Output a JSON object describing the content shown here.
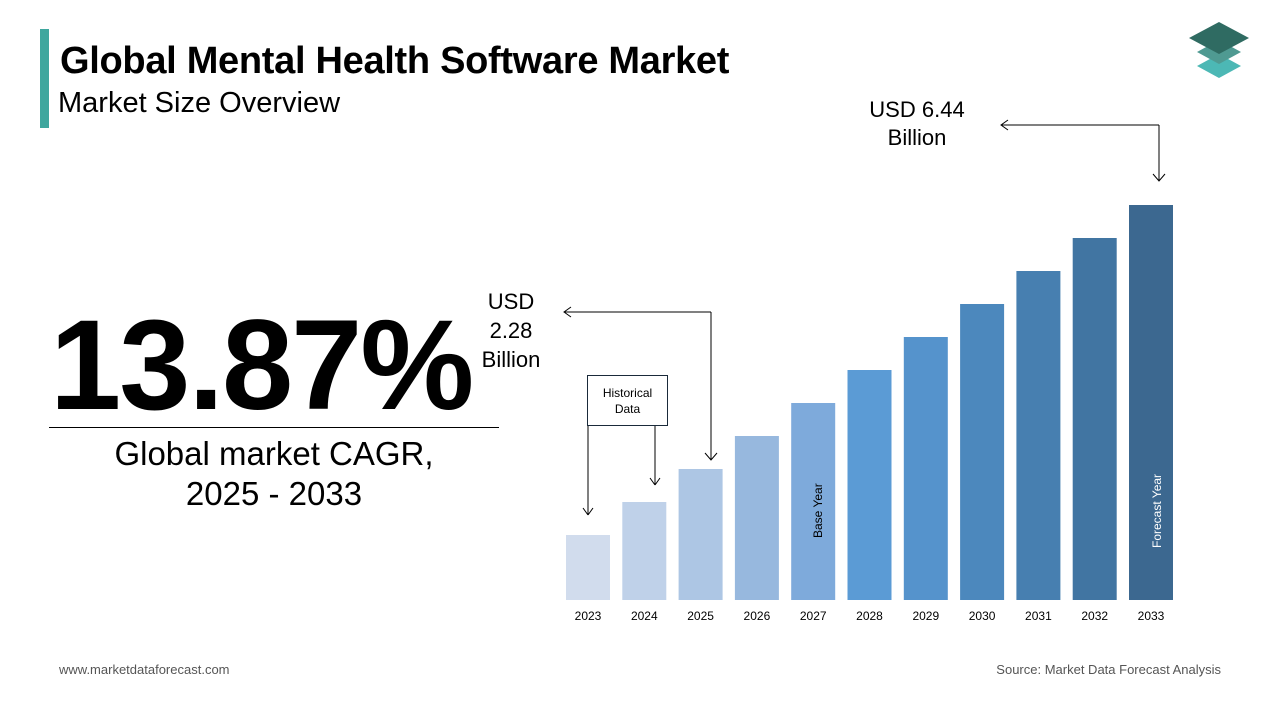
{
  "header": {
    "title": "Global Mental Health Software Market",
    "subtitle": "Market Size Overview"
  },
  "cagr": {
    "value": "13.87%",
    "label_line1": "Global market CAGR,",
    "label_line2": "2025 - 2033"
  },
  "footer": {
    "website": "www.marketdataforecast.com",
    "source": "Source: Market Data Forecast Analysis"
  },
  "logo": {
    "icon": "stacked-layers-icon",
    "colors": [
      "#2f6b62",
      "#4f9a92",
      "#4cb8b5"
    ]
  },
  "chart_data": {
    "type": "bar",
    "categories": [
      "2023",
      "2024",
      "2025",
      "2026",
      "2027",
      "2028",
      "2029",
      "2030",
      "2031",
      "2032",
      "2033"
    ],
    "values": [
      1.24,
      1.76,
      2.28,
      2.8,
      3.32,
      3.84,
      4.36,
      4.88,
      5.4,
      5.92,
      6.44
    ],
    "unit": "USD Billion",
    "colors": [
      "#d1dced",
      "#bfd1e9",
      "#adc6e4",
      "#97b8de",
      "#7eaadb",
      "#5b9bd5",
      "#5593cc",
      "#4c88bd",
      "#477fb0",
      "#4175a2",
      "#3c6890"
    ],
    "annotations": {
      "top_line1": "USD 6.44",
      "top_line2": "Billion",
      "mid_line1": "USD",
      "mid_line2": "2.28",
      "mid_line3": "Billion",
      "historical_line1": "Historical",
      "historical_line2": "Data",
      "base_year": "Base Year",
      "forecast_year": "Forecast Year"
    },
    "grid": false,
    "legend": "none"
  }
}
